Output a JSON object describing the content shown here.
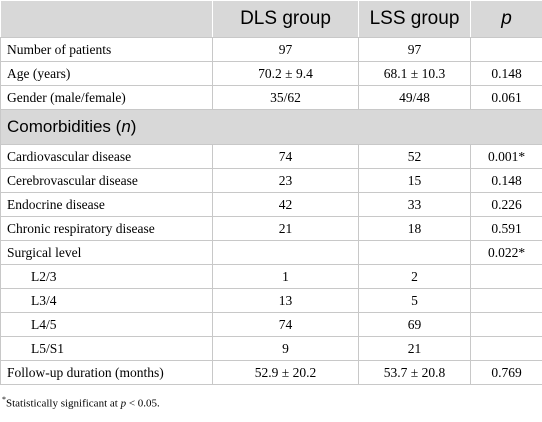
{
  "table": {
    "header": [
      "DLS group",
      "LSS group",
      "p"
    ],
    "rows": [
      [
        "Number of patients",
        "97",
        "97",
        null
      ],
      [
        "Age (years)",
        "70.2 ± 9.4",
        "68.1 ± 10.3",
        "0.148"
      ],
      [
        "Gender (male/female)",
        "35/62",
        "49/48",
        "0.061"
      ],
      [
        "Cardiovascular disease",
        "74",
        "52",
        "0.001*"
      ],
      [
        "Cerebrovascular disease",
        "23",
        "15",
        "0.148"
      ],
      [
        "Endocrine disease",
        "42",
        "33",
        "0.226"
      ],
      [
        "Chronic respiratory disease",
        "21",
        "18",
        "0.591"
      ],
      [
        "Surgical level",
        null,
        null,
        "0.022*"
      ],
      [
        "L2/3",
        "1",
        "2",
        null
      ],
      [
        "L3/4",
        "13",
        "5",
        null
      ],
      [
        "L4/5",
        "74",
        "69",
        null
      ],
      [
        "L5/S1",
        "9",
        "21",
        null
      ],
      [
        "Follow-up duration (months)",
        "52.9 ± 20.2",
        "53.7 ± 20.8",
        "0.769"
      ]
    ],
    "section": [
      "Comorbidities (",
      "n",
      ")"
    ],
    "section_before_row": 3,
    "indented_rows": [
      8,
      9,
      10,
      11
    ]
  },
  "footnote": [
    "*",
    "Statistically significant at ",
    "p",
    " < 0.05."
  ]
}
